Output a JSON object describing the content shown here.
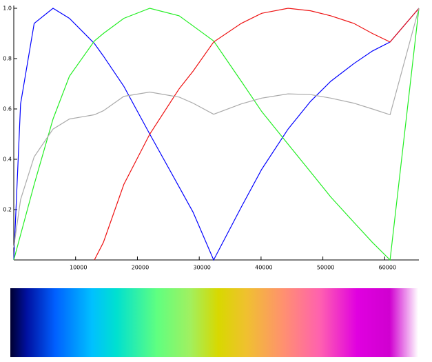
{
  "chart_data": {
    "type": "line",
    "x": [
      0,
      1100,
      3300,
      6350,
      9000,
      13040,
      14500,
      17800,
      22000,
      26750,
      29000,
      32330,
      36800,
      40100,
      44370,
      48000,
      51280,
      55000,
      58000,
      60870,
      65535
    ],
    "series": [
      {
        "name": "blue",
        "color": "#0000ff",
        "values": [
          0,
          0.62,
          0.94,
          1.0,
          0.96,
          0.86,
          0.81,
          0.69,
          0.5,
          0.29,
          0.19,
          0,
          0.21,
          0.36,
          0.52,
          0.63,
          0.71,
          0.78,
          0.83,
          0.866,
          1
        ]
      },
      {
        "name": "green",
        "color": "#22ee22",
        "values": [
          0,
          0.1,
          0.3,
          0.56,
          0.73,
          0.87,
          0.9,
          0.96,
          1.0,
          0.97,
          0.93,
          0.87,
          0.71,
          0.59,
          0.46,
          0.35,
          0.25,
          0.15,
          0.07,
          0,
          1
        ]
      },
      {
        "name": "red",
        "color": "#ee1111",
        "values": [
          null,
          null,
          null,
          null,
          null,
          0,
          0.07,
          0.3,
          0.5,
          0.68,
          0.75,
          0.866,
          0.94,
          0.98,
          1.0,
          0.99,
          0.97,
          0.94,
          0.9,
          0.866,
          1
        ]
      },
      {
        "name": "gray",
        "color": "#aaaaaa",
        "values": [
          0.05,
          0.24,
          0.41,
          0.52,
          0.56,
          0.577,
          0.593,
          0.65,
          0.667,
          0.647,
          0.623,
          0.579,
          0.62,
          0.643,
          0.66,
          0.657,
          0.643,
          0.623,
          0.6,
          0.577,
          1
        ]
      }
    ],
    "xlim": [
      0,
      65535
    ],
    "ylim": [
      0,
      1
    ],
    "xticks": [
      10000,
      20000,
      30000,
      40000,
      50000,
      60000
    ],
    "yticks": [
      0.2,
      0.4,
      0.6,
      0.8,
      {
        "value": 1,
        "label": "1.0"
      }
    ]
  }
}
